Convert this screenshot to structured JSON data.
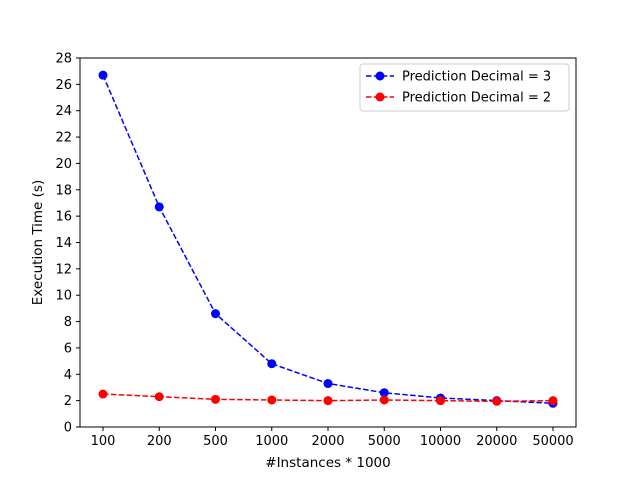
{
  "chart_data": {
    "type": "line",
    "xlabel": "#Instances * 1000",
    "ylabel": "Execution Time (s)",
    "categories": [
      "100",
      "200",
      "500",
      "1000",
      "2000",
      "5000",
      "10000",
      "20000",
      "50000"
    ],
    "ylim": [
      0,
      28
    ],
    "yticks": [
      0,
      2,
      4,
      6,
      8,
      10,
      12,
      14,
      16,
      18,
      20,
      22,
      24,
      26,
      28
    ],
    "grid": false,
    "legend_position": "top-right",
    "series": [
      {
        "name": "Prediction Decimal = 3",
        "color": "#0000ff",
        "line_style": "dashed",
        "marker": "circle",
        "values": [
          26.7,
          16.7,
          8.6,
          4.8,
          3.3,
          2.6,
          2.2,
          2.0,
          1.8
        ]
      },
      {
        "name": "Prediction Decimal = 2",
        "color": "#ff0000",
        "line_style": "dashed",
        "marker": "circle",
        "values": [
          2.5,
          2.3,
          2.1,
          2.05,
          2.0,
          2.05,
          2.0,
          1.95,
          2.0
        ]
      }
    ]
  }
}
